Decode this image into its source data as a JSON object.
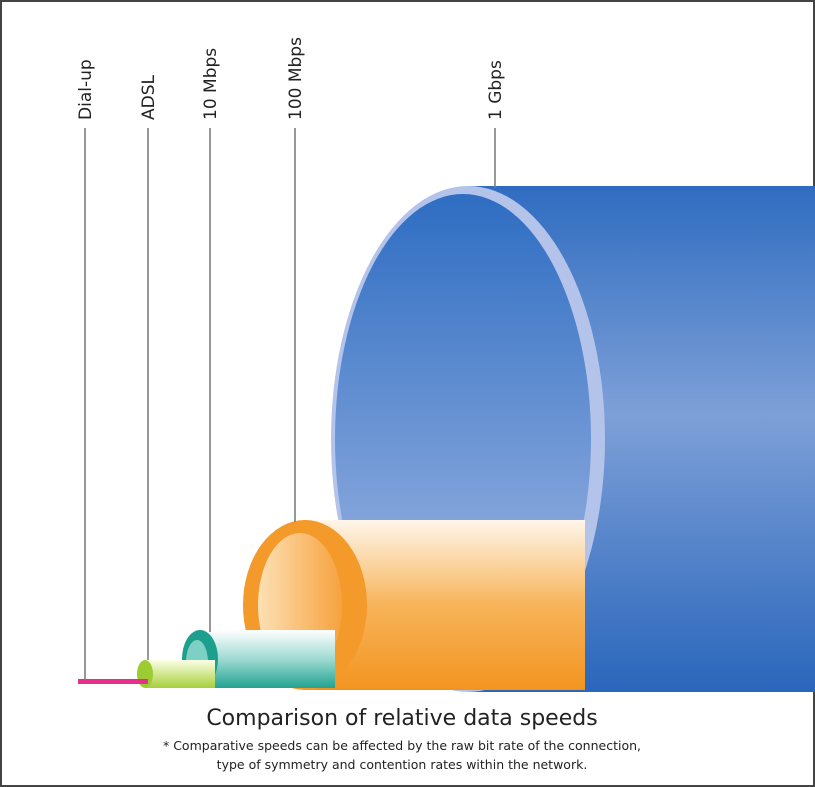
{
  "title": "Comparison of relative data speeds",
  "footnote": [
    "* Comparative speeds can be affected by the raw bit rate of the connection,",
    "type of symmetry and contention rates within the network."
  ],
  "pipes": [
    {
      "label": "Dial-up"
    },
    {
      "label": "ADSL"
    },
    {
      "label": "10 Mbps"
    },
    {
      "label": "100 Mbps"
    },
    {
      "label": "1 Gbps"
    }
  ]
}
